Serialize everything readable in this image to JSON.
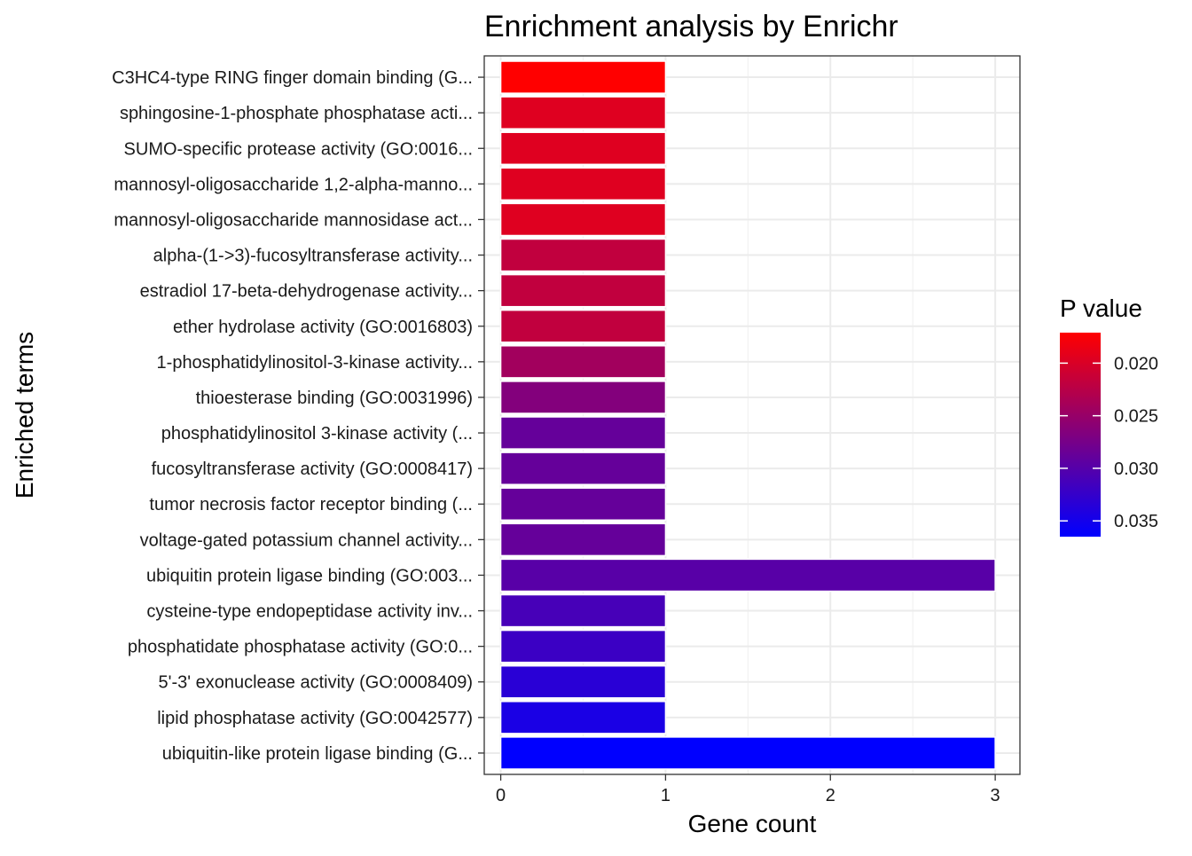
{
  "chart_data": {
    "type": "bar",
    "orientation": "horizontal",
    "title": "Enrichment analysis by Enrichr",
    "xlabel": "Gene count",
    "ylabel": "Enriched terms",
    "xlim": [
      -0.1,
      3.15
    ],
    "x_ticks": [
      0,
      1,
      2,
      3
    ],
    "x_tick_labels": [
      "0",
      "1",
      "2",
      "3"
    ],
    "grid": true,
    "legend": {
      "title": "P value",
      "position": "right",
      "ticks": [
        0.02,
        0.025,
        0.03,
        0.035
      ],
      "tick_labels": [
        "0.020",
        "0.025",
        "0.030",
        "0.035"
      ],
      "range": [
        0.0171,
        0.0365
      ],
      "colors": {
        "low": "#FF0000",
        "high": "#0000FF"
      }
    },
    "categories": [
      "C3HC4-type RING finger domain binding (G...",
      "sphingosine-1-phosphate phosphatase acti...",
      "SUMO-specific protease activity (GO:0016...",
      "mannosyl-oligosaccharide 1,2-alpha-manno...",
      "mannosyl-oligosaccharide mannosidase act...",
      "alpha-(1->3)-fucosyltransferase activity...",
      "estradiol 17-beta-dehydrogenase activity...",
      "ether hydrolase activity (GO:0016803)",
      "1-phosphatidylinositol-3-kinase activity...",
      "thioesterase binding (GO:0031996)",
      "phosphatidylinositol 3-kinase activity (...",
      "fucosyltransferase activity (GO:0008417)",
      "tumor necrosis factor receptor binding (...",
      "voltage-gated potassium channel activity...",
      "ubiquitin protein ligase binding (GO:003...",
      "cysteine-type endopeptidase activity inv...",
      "phosphatidate phosphatase activity (GO:0...",
      "5'-3' exonuclease activity (GO:0008409)",
      "lipid phosphatase activity (GO:0042577)",
      "ubiquitin-like protein ligase binding (G..."
    ],
    "values": [
      1,
      1,
      1,
      1,
      1,
      1,
      1,
      1,
      1,
      1,
      1,
      1,
      1,
      1,
      3,
      1,
      1,
      1,
      1,
      3
    ],
    "p_values": [
      0.0171,
      0.0195,
      0.0195,
      0.0195,
      0.0195,
      0.0218,
      0.0218,
      0.0218,
      0.0242,
      0.0265,
      0.0288,
      0.0288,
      0.0288,
      0.0288,
      0.0298,
      0.0311,
      0.032,
      0.0334,
      0.0345,
      0.0365
    ]
  }
}
